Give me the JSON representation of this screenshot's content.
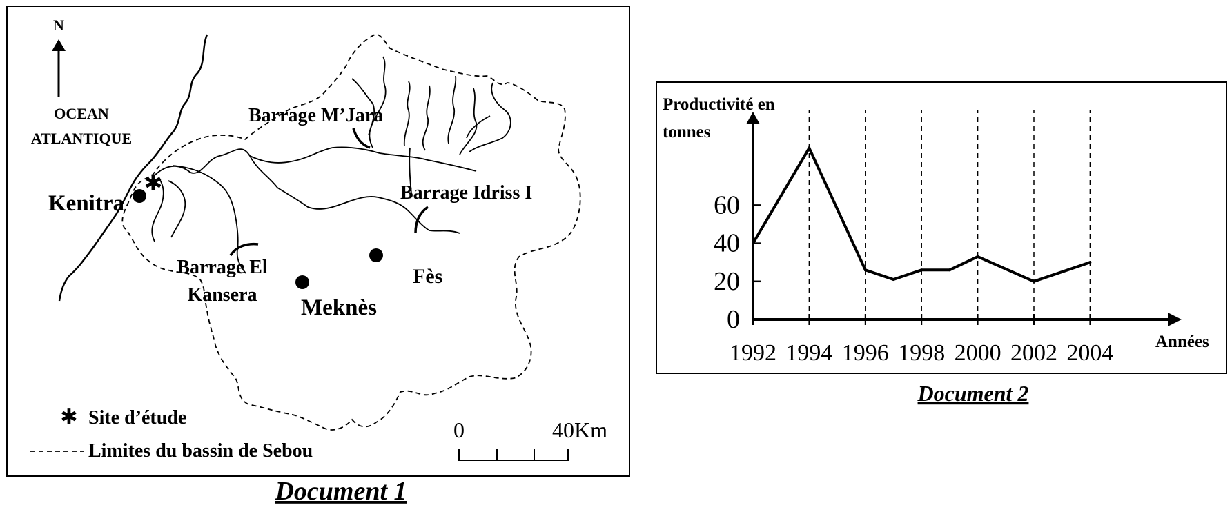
{
  "doc1": {
    "north": "N",
    "ocean_line1": "OCEAN",
    "ocean_line2": "ATLANTIQUE",
    "city_kenitra": "Kenitra",
    "city_meknes": "Meknès",
    "city_fes": "Fès",
    "dam_mjara": "Barrage M’Jara",
    "dam_idriss": "Barrage Idriss I",
    "dam_kansera_line1": "Barrage El",
    "dam_kansera_line2": "Kansera",
    "legend_site_symbol": "✱",
    "legend_site": "Site d’étude",
    "legend_limits": "Limites du bassin de Sebou",
    "scale_start": "0",
    "scale_end": "40Km",
    "caption": "Document 1"
  },
  "doc2": {
    "ylabel_line1": "Productivité en",
    "ylabel_line2": "tonnes",
    "xlabel": "Années",
    "caption": "Document 2"
  },
  "chart_data": {
    "type": "line",
    "x": [
      1992,
      1994,
      1996,
      1997,
      1998,
      1999,
      2000,
      2002,
      2004
    ],
    "values": [
      40,
      90,
      26,
      21,
      26,
      26,
      33,
      20,
      30
    ],
    "x_ticks": [
      "1992",
      "1994",
      "1996",
      "1998",
      "2000",
      "2002",
      "2004"
    ],
    "y_ticks": [
      "0",
      "20",
      "40",
      "60"
    ],
    "xlabel": "Années",
    "ylabel": "Productivité en tonnes",
    "xlim": [
      1992,
      2004
    ],
    "ylim": [
      0,
      90
    ],
    "grid": "vertical dashed lines at tick years"
  }
}
